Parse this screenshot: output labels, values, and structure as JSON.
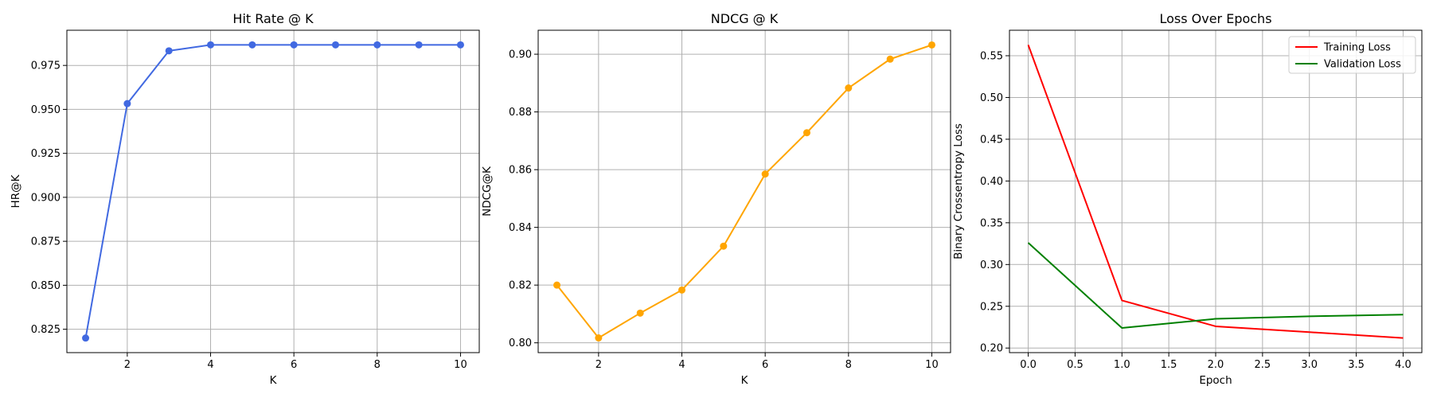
{
  "chart_data": [
    {
      "type": "line",
      "title": "Hit Rate @ K",
      "xlabel": "K",
      "ylabel": "HR@K",
      "x": [
        1,
        2,
        3,
        4,
        5,
        6,
        7,
        8,
        9,
        10
      ],
      "series": [
        {
          "values": [
            0.82,
            0.9533,
            0.9833,
            0.9867,
            0.9867,
            0.9867,
            0.9867,
            0.9867,
            0.9867,
            0.9867
          ],
          "color": "#4169e1",
          "marker": "o"
        }
      ],
      "xlim": [
        0.55,
        10.45
      ],
      "ylim": [
        0.8117,
        0.995
      ],
      "xticks": [
        2,
        4,
        6,
        8,
        10
      ],
      "xtick_labels": [
        "2",
        "4",
        "6",
        "8",
        "10"
      ],
      "yticks": [
        0.825,
        0.85,
        0.875,
        0.9,
        0.925,
        0.95,
        0.975
      ],
      "ytick_labels": [
        "0.825",
        "0.850",
        "0.875",
        "0.900",
        "0.925",
        "0.950",
        "0.975"
      ],
      "grid": true,
      "legend": null
    },
    {
      "type": "line",
      "title": "NDCG @ K",
      "xlabel": "K",
      "ylabel": "NDCG@K",
      "x": [
        1,
        2,
        3,
        4,
        5,
        6,
        7,
        8,
        9,
        10
      ],
      "series": [
        {
          "values": [
            0.82,
            0.8017,
            0.8103,
            0.8183,
            0.8335,
            0.8585,
            0.8728,
            0.8883,
            0.8983,
            0.9032
          ],
          "color": "#ffa500",
          "marker": "o"
        }
      ],
      "xlim": [
        0.55,
        10.45
      ],
      "ylim": [
        0.7966,
        0.9083
      ],
      "xticks": [
        2,
        4,
        6,
        8,
        10
      ],
      "xtick_labels": [
        "2",
        "4",
        "6",
        "8",
        "10"
      ],
      "yticks": [
        0.8,
        0.82,
        0.84,
        0.86,
        0.88,
        0.9
      ],
      "ytick_labels": [
        "0.80",
        "0.82",
        "0.84",
        "0.86",
        "0.88",
        "0.90"
      ],
      "grid": true,
      "legend": null
    },
    {
      "type": "line",
      "title": "Loss Over Epochs",
      "xlabel": "Epoch",
      "ylabel": "Binary Crossentropy Loss",
      "x": [
        0,
        1,
        2,
        3,
        4
      ],
      "series": [
        {
          "name": "Training Loss",
          "values": [
            0.563,
            0.257,
            0.226,
            0.219,
            0.212
          ],
          "color": "#ff0000",
          "marker": null
        },
        {
          "name": "Validation Loss",
          "values": [
            0.326,
            0.224,
            0.235,
            0.238,
            0.24
          ],
          "color": "#008000",
          "marker": null
        }
      ],
      "xlim": [
        -0.2,
        4.2
      ],
      "ylim": [
        0.1945,
        0.5805
      ],
      "xticks": [
        0.0,
        0.5,
        1.0,
        1.5,
        2.0,
        2.5,
        3.0,
        3.5,
        4.0
      ],
      "xtick_labels": [
        "0.0",
        "0.5",
        "1.0",
        "1.5",
        "2.0",
        "2.5",
        "3.0",
        "3.5",
        "4.0"
      ],
      "yticks": [
        0.2,
        0.25,
        0.3,
        0.35,
        0.4,
        0.45,
        0.5,
        0.55
      ],
      "ytick_labels": [
        "0.20",
        "0.25",
        "0.30",
        "0.35",
        "0.40",
        "0.45",
        "0.50",
        "0.55"
      ],
      "grid": true,
      "legend": "top-right"
    }
  ]
}
